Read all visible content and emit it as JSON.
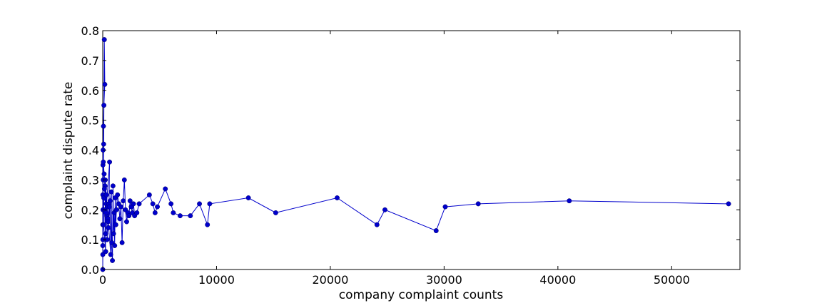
{
  "chart_data": {
    "type": "line",
    "xlabel": "company complaint counts",
    "ylabel": "complaint dispute rate",
    "xlim": [
      0,
      56000
    ],
    "ylim": [
      0.0,
      0.8
    ],
    "xticks": [
      0,
      10000,
      20000,
      30000,
      40000,
      50000
    ],
    "xtick_labels": [
      "0",
      "10000",
      "20000",
      "30000",
      "40000",
      "50000"
    ],
    "yticks": [
      0.0,
      0.1,
      0.2,
      0.3,
      0.4,
      0.5,
      0.6,
      0.7,
      0.8
    ],
    "ytick_labels": [
      "0.0",
      "0.1",
      "0.2",
      "0.3",
      "0.4",
      "0.5",
      "0.6",
      "0.7",
      "0.8"
    ],
    "grid": false,
    "marker": "circle",
    "color": "#0000cc",
    "series": [
      {
        "x": [
          2,
          5,
          10,
          20,
          40,
          80,
          140,
          180,
          100,
          60,
          30,
          15,
          8,
          4,
          3,
          50,
          200,
          250,
          300,
          120,
          350,
          150,
          400,
          90,
          70,
          260,
          170,
          450,
          220,
          500,
          320,
          380,
          550,
          600,
          280,
          650,
          700,
          480,
          750,
          800,
          580,
          850,
          900,
          950,
          1000,
          1050,
          1100,
          1150,
          1200,
          1300,
          1400,
          1500,
          1600,
          1700,
          1800,
          1900,
          2000,
          2100,
          2200,
          2300,
          2400,
          2500,
          2600,
          2700,
          2800,
          3000,
          3200,
          4100,
          4400,
          4600,
          4800,
          5500,
          6000,
          6200,
          6800,
          7700,
          8500,
          9200,
          9400,
          12800,
          15200,
          20600,
          24100,
          24800,
          29300,
          30100,
          33000,
          41000,
          55000
        ],
        "y": [
          0.0,
          0.05,
          0.1,
          0.2,
          0.3,
          0.42,
          0.77,
          0.62,
          0.55,
          0.48,
          0.4,
          0.35,
          0.25,
          0.15,
          0.08,
          0.36,
          0.28,
          0.12,
          0.22,
          0.32,
          0.18,
          0.27,
          0.21,
          0.24,
          0.15,
          0.06,
          0.2,
          0.17,
          0.3,
          0.14,
          0.25,
          0.1,
          0.22,
          0.36,
          0.19,
          0.23,
          0.05,
          0.16,
          0.26,
          0.09,
          0.21,
          0.03,
          0.28,
          0.12,
          0.19,
          0.08,
          0.24,
          0.15,
          0.2,
          0.25,
          0.22,
          0.17,
          0.21,
          0.09,
          0.23,
          0.3,
          0.2,
          0.16,
          0.19,
          0.18,
          0.23,
          0.21,
          0.19,
          0.22,
          0.18,
          0.19,
          0.22,
          0.25,
          0.22,
          0.19,
          0.21,
          0.27,
          0.22,
          0.19,
          0.18,
          0.18,
          0.22,
          0.15,
          0.22,
          0.24,
          0.19,
          0.24,
          0.15,
          0.2,
          0.13,
          0.21,
          0.22,
          0.23,
          0.22
        ]
      }
    ]
  }
}
